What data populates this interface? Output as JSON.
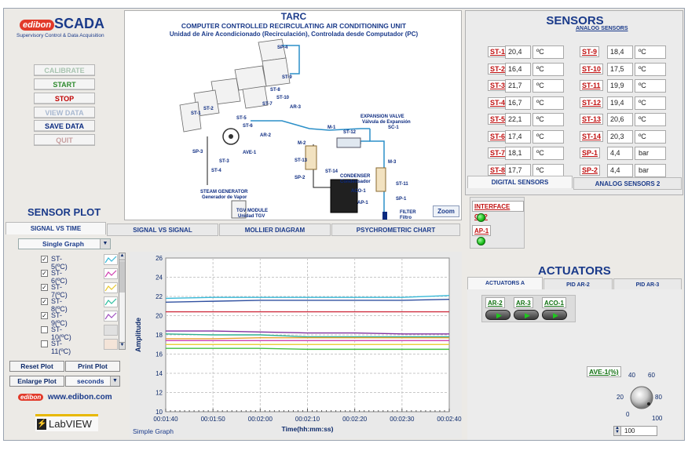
{
  "logo": {
    "brand": "edibon",
    "title": "SCADA",
    "subtitle": "Supervisory Control & Data Acquisition"
  },
  "buttons": [
    "CALIBRATE",
    "START",
    "STOP",
    "VIEW DATA",
    "SAVE DATA",
    "QUIT"
  ],
  "diagram": {
    "title": "TARC",
    "subtitle_en": "COMPUTER CONTROLLED RECIRCULATING AIR CONDITIONING UNIT",
    "subtitle_es": "Unidad de Aire Acondicionado (Recirculación), Controlada desde Computador (PC)",
    "zoom": "Zoom",
    "labels": {
      "st1": "ST-1",
      "st2": "ST-2",
      "st3": "ST-3",
      "st4": "ST-4",
      "st5": "ST-5",
      "st6": "ST-6",
      "st7": "ST-7",
      "st8": "ST-8",
      "st9": "ST-9",
      "st10": "ST-10",
      "st11": "ST-11",
      "st12": "ST-12",
      "st13": "ST-13",
      "st14": "ST-14",
      "sp1": "SP-1",
      "sp2": "SP-2",
      "sp3": "SP-3",
      "sp4": "SP-4",
      "ar1": "AR-1",
      "ar2": "AR-2",
      "ar3": "AR-3",
      "ave1": "AVE-1",
      "m1": "M-1",
      "m2": "M-2",
      "m3": "M-3",
      "sc1": "SC-1",
      "aco1": "ACO-1",
      "ap1": "AP-1",
      "exp_valve": "EXPANSION VALVE",
      "exp_valve_es": "Válvula de Expansión",
      "condenser": "CONDENSER",
      "condenser_es": "Condensador",
      "steam": "STEAM GENERATOR",
      "steam_es": "Generador de Vapor",
      "tgv": "TGV MODULE",
      "tgv_es": "Unidad TGV",
      "filter": "FILTER",
      "filter_es": "Filtro"
    }
  },
  "sensor_plot": {
    "title": "SENSOR PLOT",
    "tabs": [
      "SIGNAL VS TIME",
      "SIGNAL VS SIGNAL",
      "MOLLIER DIAGRAM",
      "PSYCHROMETRIC CHART"
    ],
    "graph_mode": "Single Graph",
    "checklist": [
      {
        "label": "ST-5(ºC)",
        "checked": true,
        "color": "#37b9d8"
      },
      {
        "label": "ST-6(ºC)",
        "checked": true,
        "color": "#d040b0"
      },
      {
        "label": "ST-7(ºC)",
        "checked": true,
        "color": "#e8c830"
      },
      {
        "label": "ST-8(ºC)",
        "checked": true,
        "color": "#30c0a0"
      },
      {
        "label": "ST-9(ºC)",
        "checked": true,
        "color": "#a050c0"
      },
      {
        "label": "ST-10(ºC)",
        "checked": false,
        "color": "#d0d0d0"
      },
      {
        "label": "ST-11(ºC)",
        "checked": false,
        "color": "#e8b090"
      }
    ],
    "reset": "Reset Plot",
    "print": "Print Plot",
    "enlarge": "Enlarge Plot",
    "time_unit": "seconds",
    "website": "www.edibon.com",
    "labview": "LabVIEW",
    "graph_label": "Simple Graph"
  },
  "chart_data": {
    "type": "line",
    "ylabel": "Amplitude",
    "xlabel": "Time(hh:mm:ss)",
    "ylim": [
      10,
      26
    ],
    "yticks": [
      "10",
      "12",
      "14",
      "16",
      "18",
      "20",
      "22",
      "24",
      "26"
    ],
    "x": [
      "00:01:40",
      "00:01:50",
      "00:02:00",
      "00:02:10",
      "00:02:20",
      "00:02:30",
      "00:02:40"
    ],
    "series": [
      {
        "color": "#37b9d8",
        "values": [
          21.8,
          21.9,
          21.9,
          21.9,
          21.9,
          21.9,
          22.1
        ]
      },
      {
        "color": "#3050a0",
        "values": [
          21.4,
          21.5,
          21.6,
          21.6,
          21.6,
          21.6,
          21.7
        ]
      },
      {
        "color": "#d03040",
        "values": [
          20.4,
          20.4,
          20.4,
          20.4,
          20.4,
          20.4,
          20.4
        ]
      },
      {
        "color": "#8030a0",
        "values": [
          18.4,
          18.4,
          18.3,
          18.2,
          18.2,
          18.1,
          18.1
        ]
      },
      {
        "color": "#30b090",
        "values": [
          18.1,
          18.0,
          18.0,
          17.8,
          17.8,
          17.8,
          17.8
        ]
      },
      {
        "color": "#e8a030",
        "values": [
          17.6,
          17.6,
          17.7,
          17.7,
          17.7,
          17.7,
          17.7
        ]
      },
      {
        "color": "#d040b0",
        "values": [
          17.4,
          17.4,
          17.4,
          17.4,
          17.4,
          17.4,
          17.4
        ]
      },
      {
        "color": "#e8d040",
        "values": [
          17.0,
          17.0,
          17.0,
          17.0,
          17.0,
          17.0,
          17.0
        ]
      },
      {
        "color": "#40c040",
        "values": [
          16.6,
          16.6,
          16.6,
          16.5,
          16.5,
          16.5,
          16.5
        ]
      }
    ]
  },
  "sensors": {
    "title": "SENSORS",
    "subtitle": "ANALOG SENSORS",
    "left": [
      {
        "id": "ST-1",
        "value": "20,4",
        "unit": "ºC"
      },
      {
        "id": "ST-2",
        "value": "16,4",
        "unit": "ºC"
      },
      {
        "id": "ST-3",
        "value": "21,7",
        "unit": "ºC"
      },
      {
        "id": "ST-4",
        "value": "16,7",
        "unit": "ºC"
      },
      {
        "id": "ST-5",
        "value": "22,1",
        "unit": "ºC"
      },
      {
        "id": "ST-6",
        "value": "17,4",
        "unit": "ºC"
      },
      {
        "id": "ST-7",
        "value": "18,1",
        "unit": "ºC"
      },
      {
        "id": "ST-8",
        "value": "17,7",
        "unit": "ºC"
      }
    ],
    "right": [
      {
        "id": "ST-9",
        "value": "18,4",
        "unit": "ºC"
      },
      {
        "id": "ST-10",
        "value": "17,5",
        "unit": "ºC"
      },
      {
        "id": "ST-11",
        "value": "19,9",
        "unit": "ºC"
      },
      {
        "id": "ST-12",
        "value": "19,4",
        "unit": "ºC"
      },
      {
        "id": "ST-13",
        "value": "20,6",
        "unit": "ºC"
      },
      {
        "id": "ST-14",
        "value": "20,3",
        "unit": "ºC"
      },
      {
        "id": "SP-1",
        "value": "4,4",
        "unit": "bar"
      },
      {
        "id": "SP-2",
        "value": "4,4",
        "unit": "bar"
      }
    ],
    "tabs": [
      "DIGITAL SENSORS",
      "ANALOG SENSORS 2"
    ],
    "interface": "INTERFACE ON?",
    "ap1": "AP-1"
  },
  "actuators": {
    "title": "ACTUATORS",
    "tabs": [
      "ACTUATORS A",
      "PID AR-2",
      "PID AR-3"
    ],
    "switches": [
      "AR-2",
      "AR-3",
      "ACO-1"
    ],
    "knob_label": "AVE-1(%)",
    "knob_ticks": [
      "0",
      "20",
      "40",
      "60",
      "80",
      "100"
    ],
    "knob_value": "100"
  }
}
